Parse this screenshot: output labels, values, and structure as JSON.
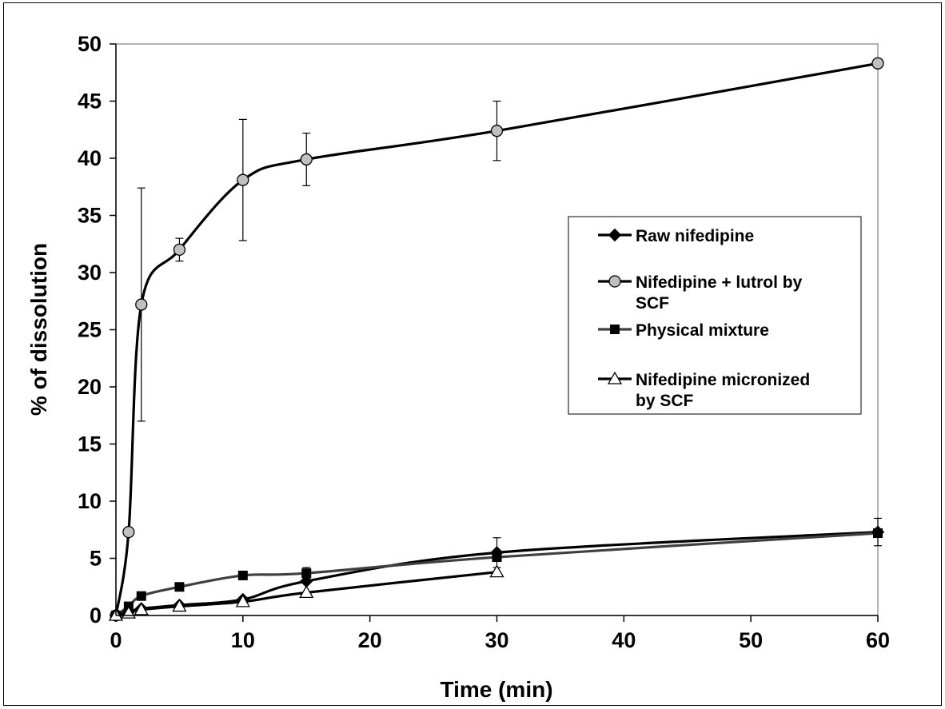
{
  "chart_data": {
    "type": "line",
    "title": "",
    "xlabel": "Time (min)",
    "ylabel": "% of dissolution",
    "xlim": [
      0,
      60
    ],
    "ylim": [
      0,
      50
    ],
    "xticks": [
      "0",
      "10",
      "20",
      "30",
      "40",
      "50",
      "60"
    ],
    "yticks": [
      "0",
      "5",
      "10",
      "15",
      "20",
      "25",
      "30",
      "35",
      "40",
      "45",
      "50"
    ],
    "grid": false,
    "legend_position": "right",
    "series": [
      {
        "name": "Raw nifedipine",
        "marker": "diamond",
        "color": "#000000",
        "x": [
          0,
          1,
          2,
          5,
          10,
          15,
          30,
          60
        ],
        "y": [
          0,
          0.3,
          0.6,
          0.9,
          1.4,
          3.0,
          5.5,
          7.3
        ],
        "err": [
          0,
          0,
          0,
          0,
          0,
          0,
          1.3,
          1.2
        ]
      },
      {
        "name": "Nifedipine + lutrol by SCF",
        "name_lines": [
          "Nifedipine + lutrol by",
          "SCF"
        ],
        "marker": "circle",
        "color": "#000000",
        "marker_fill": "#c0c0c0",
        "x": [
          0,
          1,
          2,
          5,
          10,
          15,
          30,
          60
        ],
        "y": [
          0,
          7.3,
          27.2,
          32.0,
          38.1,
          39.9,
          42.4,
          48.3
        ],
        "err": [
          0,
          0,
          10.2,
          1.0,
          5.3,
          2.3,
          2.6,
          0
        ]
      },
      {
        "name": "Physical mixture",
        "marker": "square",
        "color": "#404040",
        "x": [
          0,
          1,
          2,
          5,
          10,
          15,
          30,
          60
        ],
        "y": [
          0,
          0.8,
          1.7,
          2.5,
          3.5,
          3.7,
          5.1,
          7.2
        ],
        "err": [
          0,
          0,
          0,
          0,
          0,
          0.5,
          0,
          0
        ]
      },
      {
        "name": "Nifedipine micronized by SCF",
        "name_lines": [
          "Nifedipine micronized",
          "by SCF"
        ],
        "marker": "triangle",
        "color": "#000000",
        "x": [
          0,
          1,
          2,
          5,
          10,
          15,
          30
        ],
        "y": [
          0,
          0.2,
          0.5,
          0.8,
          1.2,
          2.0,
          3.8
        ],
        "err": [
          0,
          0,
          0,
          0,
          0,
          0,
          0
        ]
      }
    ]
  }
}
